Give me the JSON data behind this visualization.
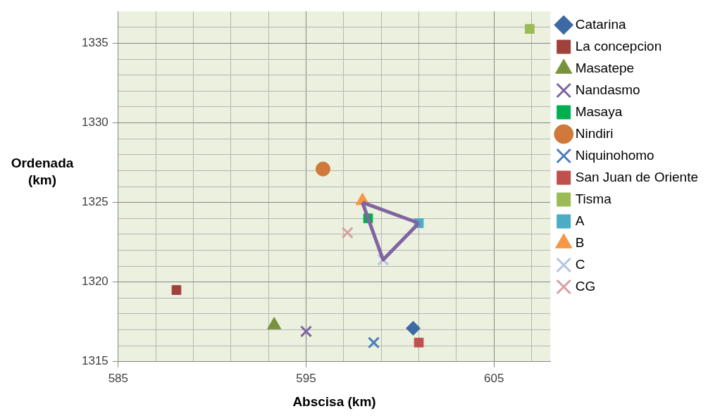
{
  "chart_data": {
    "type": "scatter",
    "xlabel": "Abscisa (km)",
    "ylabel": "Ordenada (km)",
    "xlim": [
      585,
      608
    ],
    "ylim": [
      1315,
      1337
    ],
    "xticks": [
      585,
      {
        "value": 587,
        "label": null
      },
      {
        "value": 589,
        "label": null
      },
      {
        "value": 591,
        "label": null
      },
      {
        "value": 593,
        "label": null
      },
      595,
      {
        "value": 597,
        "label": null
      },
      {
        "value": 599,
        "label": null
      },
      {
        "value": 601,
        "label": null
      },
      {
        "value": 603,
        "label": null
      },
      605,
      {
        "value": 607,
        "label": null
      }
    ],
    "yticks": [
      1315,
      {
        "value": 1316,
        "label": null
      },
      {
        "value": 1317,
        "label": null
      },
      {
        "value": 1318,
        "label": null
      },
      {
        "value": 1319,
        "label": null
      },
      1320,
      {
        "value": 1321,
        "label": null
      },
      {
        "value": 1322,
        "label": null
      },
      {
        "value": 1323,
        "label": null
      },
      {
        "value": 1324,
        "label": null
      },
      1325,
      {
        "value": 1326,
        "label": null
      },
      {
        "value": 1327,
        "label": null
      },
      {
        "value": 1328,
        "label": null
      },
      {
        "value": 1329,
        "label": null
      },
      1330,
      {
        "value": 1331,
        "label": null
      },
      {
        "value": 1332,
        "label": null
      },
      {
        "value": 1333,
        "label": null
      },
      {
        "value": 1334,
        "label": null
      },
      1335,
      {
        "value": 1336,
        "label": null
      }
    ],
    "grid": true,
    "legend": "right",
    "series": [
      {
        "type": "line",
        "color": "#8064a2",
        "marker": "none",
        "x": [
          598.0,
          601.0
        ],
        "values": [
          1325.0,
          1323.7
        ]
      },
      {
        "type": "line",
        "color": "#8064a2",
        "marker": "none",
        "x": [
          598.0,
          598.3,
          599.1,
          601.0
        ],
        "values": [
          1325.0,
          1324.0,
          1321.4,
          1323.7
        ]
      },
      {
        "name": "Catarina",
        "color": "#3d6aa5",
        "marker": "diamond",
        "x": [
          600.7
        ],
        "values": [
          1317.1
        ]
      },
      {
        "name": "La concepcion",
        "color": "#a0413c",
        "marker": "square",
        "x": [
          588.1
        ],
        "values": [
          1319.5
        ]
      },
      {
        "name": "Masatepe",
        "color": "#77933c",
        "marker": "triangle",
        "x": [
          593.3
        ],
        "values": [
          1317.3
        ]
      },
      {
        "name": "Nandasmo",
        "color": "#7f63a1",
        "marker": "cross",
        "x": [
          595.0
        ],
        "values": [
          1316.9
        ]
      },
      {
        "name": "Masaya",
        "color": "#00b050",
        "marker": "square",
        "x": [
          598.3
        ],
        "values": [
          1324.0
        ]
      },
      {
        "name": "Nindiri",
        "color": "#d0793a",
        "marker": "circle",
        "x": [
          595.9
        ],
        "values": [
          1327.1
        ]
      },
      {
        "name": "Niquinohomo",
        "color": "#4a7ebb",
        "marker": "cross",
        "x": [
          598.6
        ],
        "values": [
          1316.2
        ]
      },
      {
        "name": "San Juan de Oriente",
        "color": "#c0504d",
        "marker": "square",
        "x": [
          601.0
        ],
        "values": [
          1316.2
        ]
      },
      {
        "name": "Tisma",
        "color": "#9bbb59",
        "marker": "square",
        "x": [
          606.9
        ],
        "values": [
          1335.9
        ]
      },
      {
        "name": "A",
        "color": "#4bacc6",
        "marker": "square",
        "x": [
          601.0
        ],
        "values": [
          1323.7
        ]
      },
      {
        "name": "B",
        "color": "#f79646",
        "marker": "triangle",
        "x": [
          598.0
        ],
        "values": [
          1325.1
        ]
      },
      {
        "name": "C",
        "color": "#b4c4e4",
        "marker": "cross",
        "x": [
          599.1
        ],
        "values": [
          1321.4
        ]
      },
      {
        "name": "CG",
        "color": "#d9a0a0",
        "marker": "cross",
        "x": [
          597.2
        ],
        "values": [
          1323.1
        ]
      }
    ]
  }
}
